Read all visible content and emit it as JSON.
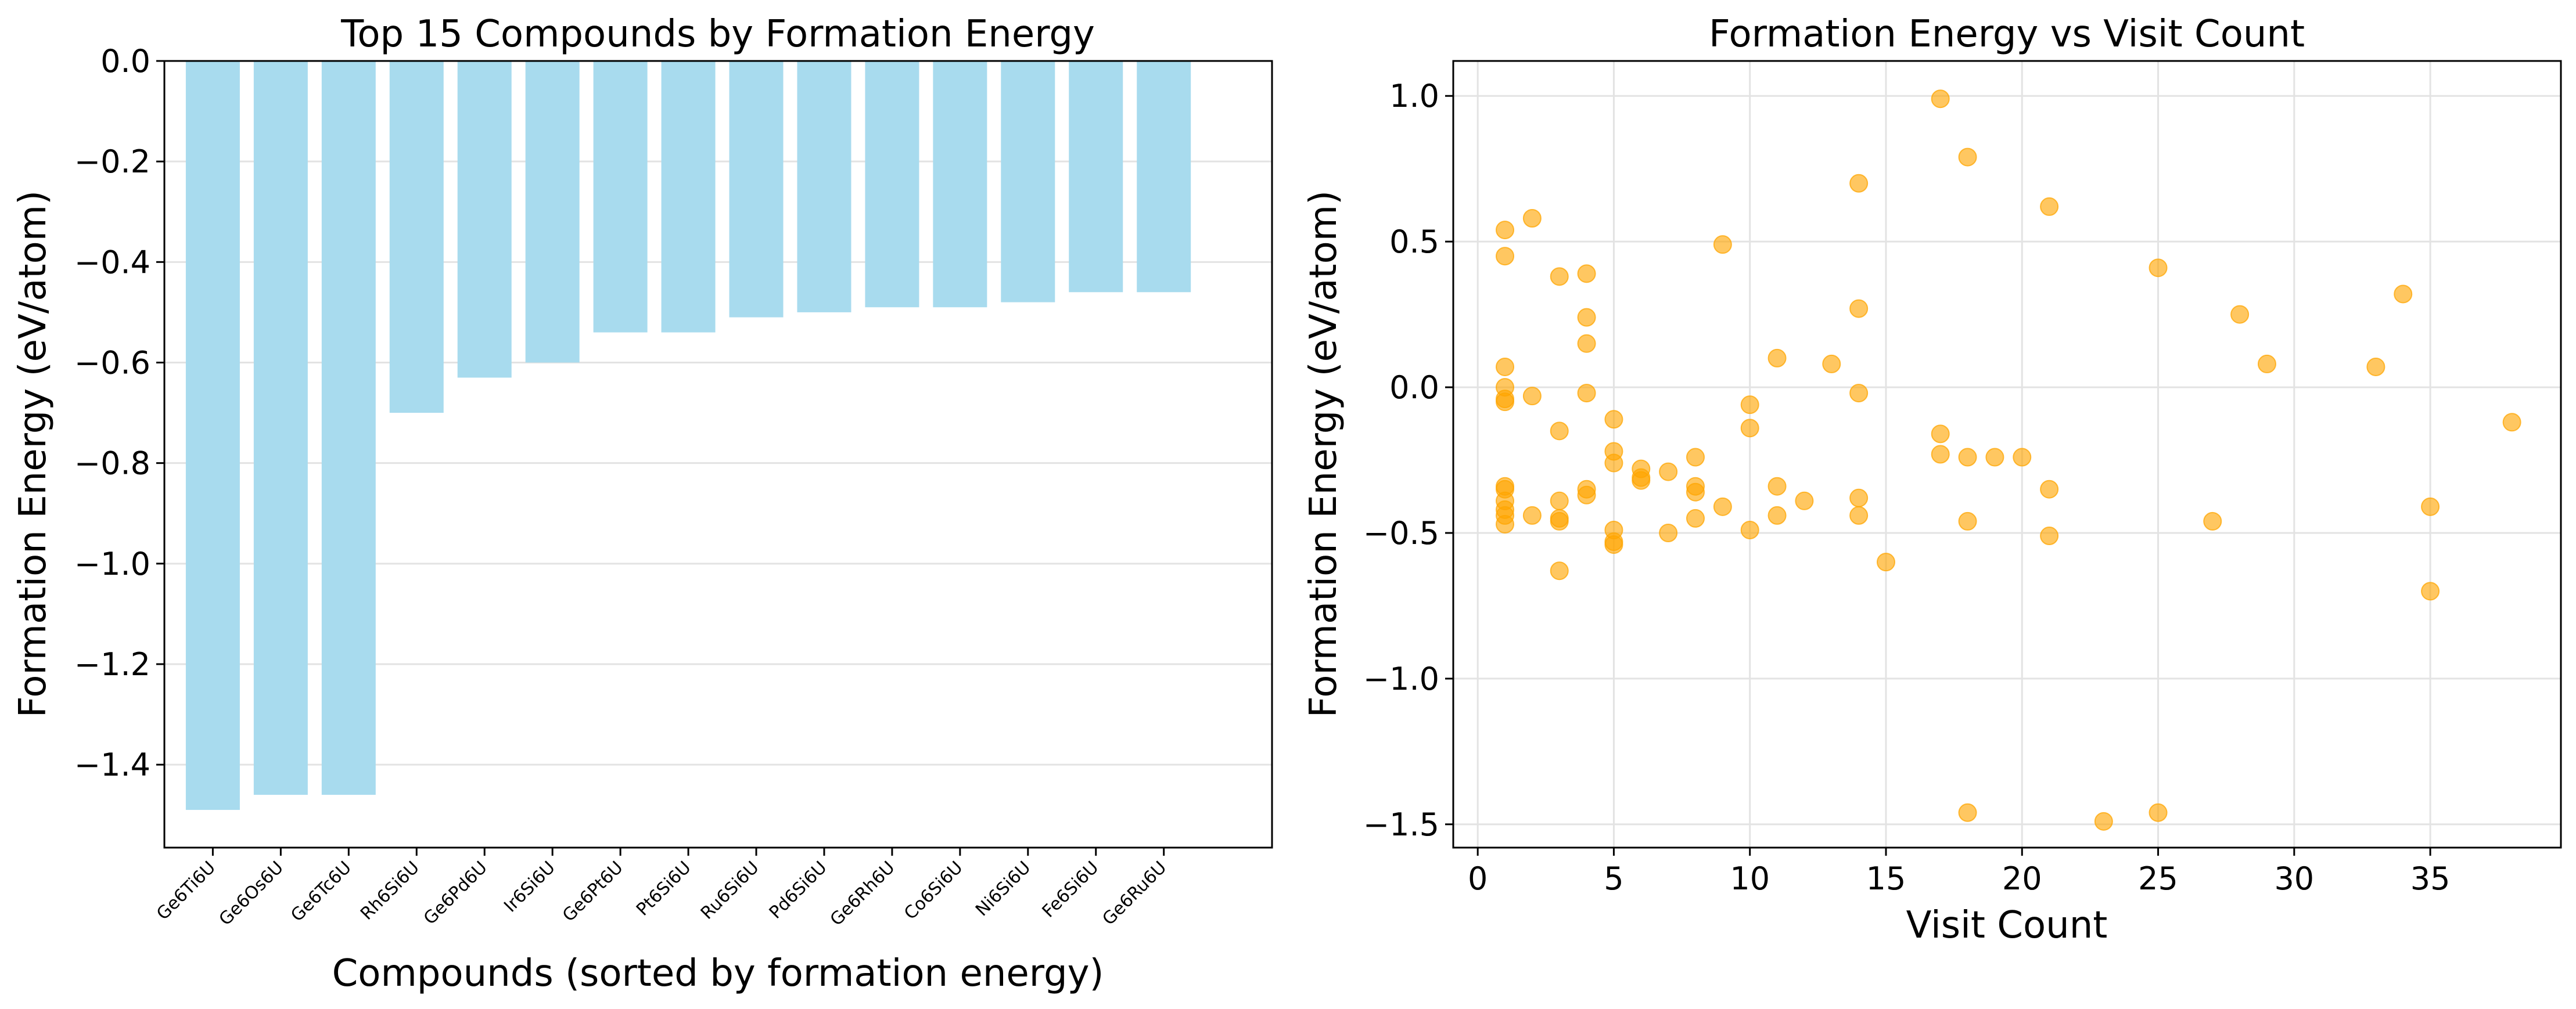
{
  "chart_data": [
    {
      "type": "bar",
      "title": "Top 15 Compounds by Formation Energy",
      "xlabel": "Compounds (sorted by formation energy)",
      "ylabel": "Formation Energy (eV/atom)",
      "categories": [
        "Ge6Ti6U",
        "Ge6Os6U",
        "Ge6Tc6U",
        "Rh6Si6U",
        "Ge6Pd6U",
        "Ir6Si6U",
        "Ge6Pt6U",
        "Pt6Si6U",
        "Ru6Si6U",
        "Pd6Si6U",
        "Ge6Rh6U",
        "Co6Si6U",
        "Ni6Si6U",
        "Fe6Si6U",
        "Ge6Ru6U"
      ],
      "values": [
        -1.49,
        -1.46,
        -1.46,
        -0.7,
        -0.63,
        -0.6,
        -0.54,
        -0.54,
        -0.51,
        -0.5,
        -0.49,
        -0.49,
        -0.48,
        -0.46,
        -0.46
      ],
      "ylim": [
        -1.565,
        0.0
      ],
      "yticks": [
        "0.0",
        "−0.2",
        "−0.4",
        "−0.6",
        "−0.8",
        "−1.0",
        "−1.2",
        "−1.4"
      ],
      "ytick_values": [
        0.0,
        -0.2,
        -0.4,
        -0.6,
        -0.8,
        -1.0,
        -1.2,
        -1.4
      ],
      "grid": "y",
      "color": "#a8dbee"
    },
    {
      "type": "scatter",
      "title": "Formation Energy vs Visit Count",
      "xlabel": "Visit Count",
      "ylabel": "Formation Energy (eV/atom)",
      "xlim": [
        -0.9,
        39.8
      ],
      "ylim": [
        -1.58,
        1.12
      ],
      "xticks": [
        "0",
        "5",
        "10",
        "15",
        "20",
        "25",
        "30",
        "35"
      ],
      "xtick_values": [
        0,
        5,
        10,
        15,
        20,
        25,
        30,
        35
      ],
      "yticks": [
        "1.0",
        "0.5",
        "0.0",
        "−0.5",
        "−1.0",
        "−1.5"
      ],
      "ytick_values": [
        1.0,
        0.5,
        0.0,
        -0.5,
        -1.0,
        -1.5
      ],
      "grid": "both",
      "color": "#ffa500",
      "points": [
        [
          1,
          0.54
        ],
        [
          1,
          0.45
        ],
        [
          1,
          0.07
        ],
        [
          1,
          0.0
        ],
        [
          1,
          -0.04
        ],
        [
          1,
          -0.05
        ],
        [
          1,
          -0.34
        ],
        [
          1,
          -0.35
        ],
        [
          1,
          -0.39
        ],
        [
          1,
          -0.42
        ],
        [
          1,
          -0.44
        ],
        [
          1,
          -0.47
        ],
        [
          2,
          0.58
        ],
        [
          2,
          -0.03
        ],
        [
          2,
          -0.44
        ],
        [
          3,
          0.38
        ],
        [
          3,
          -0.15
        ],
        [
          3,
          -0.39
        ],
        [
          3,
          -0.45
        ],
        [
          3,
          -0.46
        ],
        [
          3,
          -0.63
        ],
        [
          4,
          0.39
        ],
        [
          4,
          0.24
        ],
        [
          4,
          0.15
        ],
        [
          4,
          -0.02
        ],
        [
          4,
          -0.35
        ],
        [
          4,
          -0.37
        ],
        [
          5,
          -0.11
        ],
        [
          5,
          -0.22
        ],
        [
          5,
          -0.26
        ],
        [
          5,
          -0.49
        ],
        [
          5,
          -0.53
        ],
        [
          5,
          -0.54
        ],
        [
          6,
          -0.28
        ],
        [
          6,
          -0.31
        ],
        [
          6,
          -0.32
        ],
        [
          7,
          -0.29
        ],
        [
          7,
          -0.5
        ],
        [
          8,
          -0.24
        ],
        [
          8,
          -0.34
        ],
        [
          8,
          -0.36
        ],
        [
          8,
          -0.45
        ],
        [
          9,
          0.49
        ],
        [
          9,
          -0.41
        ],
        [
          10,
          -0.06
        ],
        [
          10,
          -0.14
        ],
        [
          10,
          -0.49
        ],
        [
          11,
          0.1
        ],
        [
          11,
          -0.34
        ],
        [
          11,
          -0.44
        ],
        [
          12,
          -0.39
        ],
        [
          13,
          0.08
        ],
        [
          14,
          0.7
        ],
        [
          14,
          0.27
        ],
        [
          14,
          -0.02
        ],
        [
          14,
          -0.38
        ],
        [
          14,
          -0.44
        ],
        [
          15,
          -0.6
        ],
        [
          17,
          0.99
        ],
        [
          17,
          -0.16
        ],
        [
          17,
          -0.23
        ],
        [
          18,
          0.79
        ],
        [
          18,
          -0.24
        ],
        [
          18,
          -0.46
        ],
        [
          18,
          -1.46
        ],
        [
          19,
          -0.24
        ],
        [
          20,
          -0.24
        ],
        [
          21,
          0.62
        ],
        [
          21,
          -0.35
        ],
        [
          21,
          -0.51
        ],
        [
          23,
          -1.49
        ],
        [
          25,
          0.41
        ],
        [
          25,
          -1.46
        ],
        [
          27,
          -0.46
        ],
        [
          28,
          0.25
        ],
        [
          29,
          0.08
        ],
        [
          33,
          0.07
        ],
        [
          34,
          0.32
        ],
        [
          35,
          -0.41
        ],
        [
          35,
          -0.7
        ],
        [
          38,
          -0.12
        ]
      ]
    }
  ]
}
